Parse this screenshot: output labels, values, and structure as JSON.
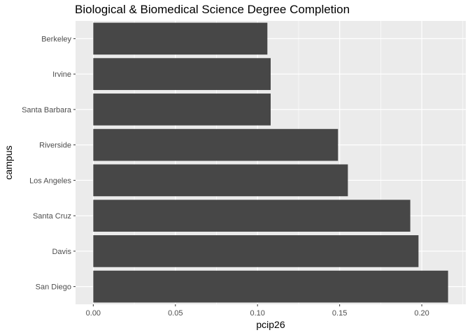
{
  "chart_data": {
    "type": "bar",
    "orientation": "horizontal",
    "title": "Biological & Biomedical Science Degree Completion",
    "xlabel": "pcip26",
    "ylabel": "campus",
    "categories": [
      "Berkeley",
      "Irvine",
      "Santa Barbara",
      "Riverside",
      "Los Angeles",
      "Santa Cruz",
      "Davis",
      "San Diego"
    ],
    "values": [
      0.106,
      0.108,
      0.108,
      0.149,
      0.155,
      0.193,
      0.198,
      0.216
    ],
    "xlim": [
      -0.0108,
      0.2268
    ],
    "xticks": [
      0.0,
      0.05,
      0.1,
      0.15,
      0.2
    ],
    "xtick_labels": [
      "0.00",
      "0.05",
      "0.10",
      "0.15",
      "0.20"
    ],
    "grid": true,
    "bar_color": "#474747",
    "panel_background": "#ebebeb",
    "gridline_color": "#ffffff"
  }
}
